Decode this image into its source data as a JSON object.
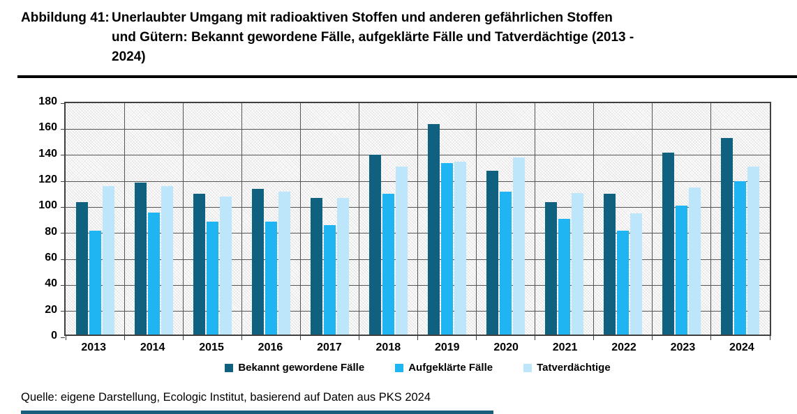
{
  "header": {
    "figure_label": "Abbildung 41:",
    "title_lines": [
      "Unerlaubter Umgang mit radioaktiven Stoffen und anderen gefährlichen Stoffen",
      "und Gütern: Bekannt gewordene Fälle, aufgeklärte Fälle und Tatverdächtige (2013 -",
      "2024)"
    ]
  },
  "chart_data": {
    "type": "bar",
    "categories": [
      "2013",
      "2014",
      "2015",
      "2016",
      "2017",
      "2018",
      "2019",
      "2020",
      "2021",
      "2022",
      "2023",
      "2024"
    ],
    "series": [
      {
        "name": "Bekannt gewordene Fälle",
        "color": "#10607f",
        "values": [
          102,
          117,
          108,
          112,
          105,
          138,
          162,
          126,
          102,
          108,
          140,
          151
        ]
      },
      {
        "name": "Aufgeklärte Fälle",
        "color": "#1fb5f2",
        "values": [
          80,
          94,
          87,
          87,
          84,
          108,
          132,
          110,
          89,
          80,
          99,
          118
        ]
      },
      {
        "name": "Tatverdächtige",
        "color": "#bde6fa",
        "values": [
          114,
          114,
          106,
          110,
          105,
          129,
          133,
          136,
          109,
          93,
          113,
          129
        ]
      }
    ],
    "title": "",
    "xlabel": "",
    "ylabel": "",
    "ylim": [
      0,
      180
    ],
    "ytick_step": 20,
    "grid": true,
    "legend_position": "bottom"
  },
  "source": {
    "text": "Quelle: eigene Darstellung, Ecologic Institut, basierend auf Daten aus PKS 2024"
  },
  "decor": {
    "header_rule_color": "#000000",
    "footer_stripe_color": "#1a5e7e",
    "gridline_color": "#555555",
    "plot_border_color": "#3f3f3f"
  }
}
